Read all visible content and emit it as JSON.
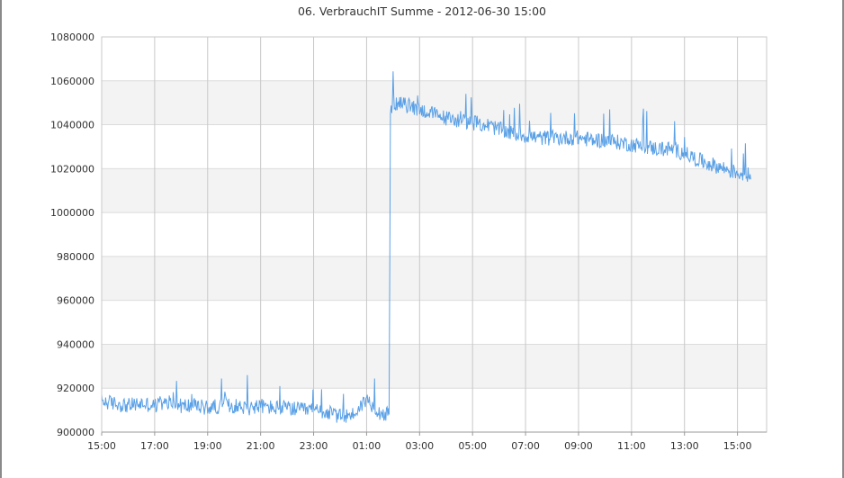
{
  "chart_data": {
    "type": "line",
    "title": "06. VerbrauchIT Summe - 2012-06-30 15:00",
    "xlabel": "",
    "ylabel": "",
    "x_ticks": [
      "15:00",
      "17:00",
      "19:00",
      "21:00",
      "23:00",
      "01:00",
      "03:00",
      "05:00",
      "07:00",
      "09:00",
      "11:00",
      "13:00",
      "15:00"
    ],
    "x_tick_hours": [
      0,
      2,
      4,
      6,
      8,
      10,
      12,
      14,
      16,
      18,
      20,
      22,
      24
    ],
    "xlim_hours": [
      0,
      25.1
    ],
    "y_ticks": [
      900000,
      920000,
      940000,
      960000,
      980000,
      1000000,
      1020000,
      1040000,
      1060000,
      1080000
    ],
    "ylim": [
      900000,
      1080000
    ],
    "grid": true,
    "legend": "none",
    "series": [
      {
        "color": "#5aa0e6",
        "hours_from_start": [
          0,
          0.5,
          1,
          1.5,
          2,
          2.5,
          3,
          3.5,
          4,
          4.5,
          5,
          5.5,
          6,
          6.5,
          7,
          7.5,
          8,
          8.5,
          9,
          9.5,
          10,
          10.25,
          10.5,
          10.75,
          10.85,
          10.9,
          11,
          11.5,
          12,
          12.5,
          13,
          13.5,
          14,
          14.5,
          15,
          15.5,
          16,
          16.5,
          17,
          17.5,
          18,
          18.5,
          19,
          19.5,
          20,
          20.5,
          21,
          21.5,
          22,
          22.5,
          23,
          23.5,
          24,
          24.5
        ],
        "values": [
          914000,
          913000,
          912000,
          913000,
          912000,
          913000,
          912000,
          912000,
          911000,
          912000,
          912000,
          911000,
          912000,
          911000,
          911000,
          910000,
          910000,
          909000,
          907000,
          908000,
          915000,
          912000,
          909000,
          908000,
          908000,
          1045000,
          1050000,
          1049000,
          1047000,
          1045000,
          1043000,
          1042000,
          1041000,
          1040000,
          1038000,
          1036000,
          1035000,
          1034000,
          1034000,
          1034000,
          1034000,
          1033000,
          1033000,
          1032000,
          1031000,
          1030000,
          1029000,
          1029000,
          1027000,
          1024000,
          1022000,
          1020000,
          1018000,
          1017000
        ]
      }
    ]
  }
}
